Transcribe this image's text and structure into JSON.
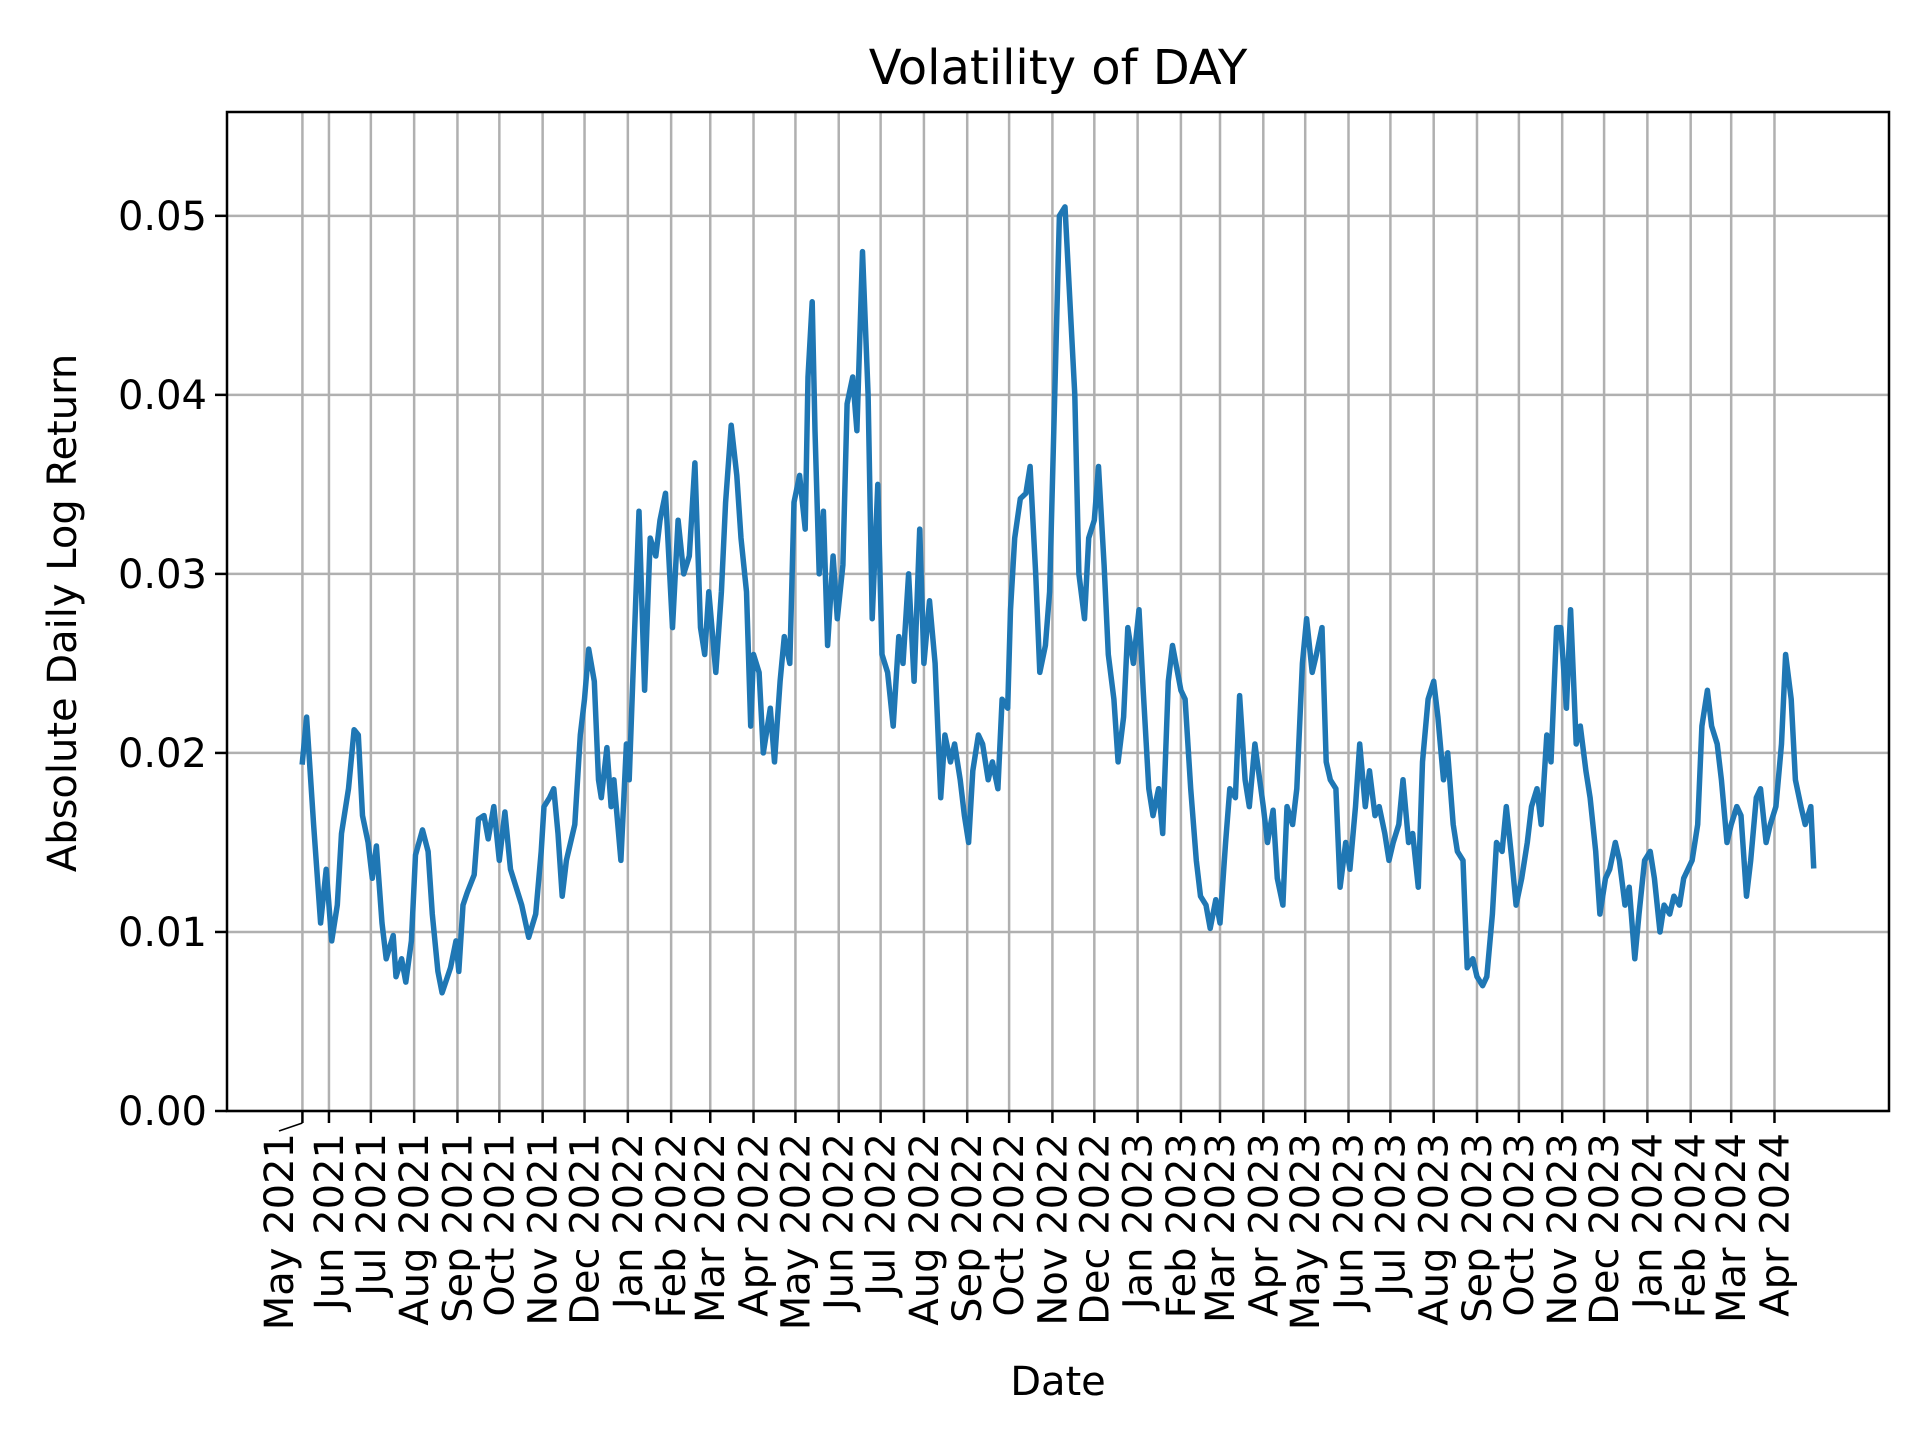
{
  "chart_data": {
    "type": "line",
    "title": "Volatility of DAY",
    "xlabel": "Date",
    "ylabel": "Absolute Daily Log Return",
    "xlim": [
      "2021-03-20",
      "2024-06-22"
    ],
    "ylim": [
      0,
      0.0558
    ],
    "grid": true,
    "line_color": "#1f77b4",
    "grid_color": "#b0b0b0",
    "yticks": [
      {
        "value": 0.0,
        "label": "0.00"
      },
      {
        "value": 0.01,
        "label": "0.01"
      },
      {
        "value": 0.02,
        "label": "0.02"
      },
      {
        "value": 0.03,
        "label": "0.03"
      },
      {
        "value": 0.04,
        "label": "0.04"
      },
      {
        "value": 0.05,
        "label": "0.05"
      }
    ],
    "xticks": [
      {
        "date": "2021-05-13",
        "label": "May 2021"
      },
      {
        "date": "2021-06-01",
        "label": "Jun 2021"
      },
      {
        "date": "2021-07-01",
        "label": "Jul 2021"
      },
      {
        "date": "2021-08-01",
        "label": "Aug 2021"
      },
      {
        "date": "2021-09-01",
        "label": "Sep 2021"
      },
      {
        "date": "2021-10-01",
        "label": "Oct 2021"
      },
      {
        "date": "2021-11-01",
        "label": "Nov 2021"
      },
      {
        "date": "2021-12-01",
        "label": "Dec 2021"
      },
      {
        "date": "2022-01-01",
        "label": "Jan 2022"
      },
      {
        "date": "2022-02-01",
        "label": "Feb 2022"
      },
      {
        "date": "2022-03-01",
        "label": "Mar 2022"
      },
      {
        "date": "2022-04-01",
        "label": "Apr 2022"
      },
      {
        "date": "2022-05-01",
        "label": "May 2022"
      },
      {
        "date": "2022-06-01",
        "label": "Jun 2022"
      },
      {
        "date": "2022-07-01",
        "label": "Jul 2022"
      },
      {
        "date": "2022-08-01",
        "label": "Aug 2022"
      },
      {
        "date": "2022-09-01",
        "label": "Sep 2022"
      },
      {
        "date": "2022-10-01",
        "label": "Oct 2022"
      },
      {
        "date": "2022-11-01",
        "label": "Nov 2022"
      },
      {
        "date": "2022-12-01",
        "label": "Dec 2022"
      },
      {
        "date": "2023-01-01",
        "label": "Jan 2023"
      },
      {
        "date": "2023-02-01",
        "label": "Feb 2023"
      },
      {
        "date": "2023-03-01",
        "label": "Mar 2023"
      },
      {
        "date": "2023-04-01",
        "label": "Apr 2023"
      },
      {
        "date": "2023-05-01",
        "label": "May 2023"
      },
      {
        "date": "2023-06-01",
        "label": "Jun 2023"
      },
      {
        "date": "2023-07-01",
        "label": "Jul 2023"
      },
      {
        "date": "2023-08-01",
        "label": "Aug 2023"
      },
      {
        "date": "2023-09-01",
        "label": "Sep 2023"
      },
      {
        "date": "2023-10-01",
        "label": "Oct 2023"
      },
      {
        "date": "2023-11-01",
        "label": "Nov 2023"
      },
      {
        "date": "2023-12-01",
        "label": "Dec 2023"
      },
      {
        "date": "2024-01-01",
        "label": "Jan 2024"
      },
      {
        "date": "2024-02-01",
        "label": "Feb 2024"
      },
      {
        "date": "2024-03-01",
        "label": "Mar 2024"
      },
      {
        "date": "2024-04-01",
        "label": "Apr 2024"
      }
    ],
    "points": [
      [
        "2021-05-13",
        0.0195
      ],
      [
        "2021-05-16",
        0.022
      ],
      [
        "2021-05-21",
        0.016
      ],
      [
        "2021-05-26",
        0.0105
      ],
      [
        "2021-05-30",
        0.0135
      ],
      [
        "2021-06-03",
        0.0095
      ],
      [
        "2021-06-07",
        0.0115
      ],
      [
        "2021-06-10",
        0.0155
      ],
      [
        "2021-06-15",
        0.018
      ],
      [
        "2021-06-19",
        0.0213
      ],
      [
        "2021-06-22",
        0.021
      ],
      [
        "2021-06-25",
        0.0165
      ],
      [
        "2021-06-29",
        0.015
      ],
      [
        "2021-07-02",
        0.013
      ],
      [
        "2021-07-05",
        0.0148
      ],
      [
        "2021-07-09",
        0.0105
      ],
      [
        "2021-07-12",
        0.0085
      ],
      [
        "2021-07-17",
        0.0098
      ],
      [
        "2021-07-19",
        0.0075
      ],
      [
        "2021-07-23",
        0.0085
      ],
      [
        "2021-07-26",
        0.0072
      ],
      [
        "2021-07-30",
        0.0095
      ],
      [
        "2021-08-02",
        0.0143
      ],
      [
        "2021-08-07",
        0.0157
      ],
      [
        "2021-08-11",
        0.0145
      ],
      [
        "2021-08-14",
        0.011
      ],
      [
        "2021-08-18",
        0.0078
      ],
      [
        "2021-08-21",
        0.0066
      ],
      [
        "2021-08-27",
        0.008
      ],
      [
        "2021-08-31",
        0.0095
      ],
      [
        "2021-09-02",
        0.0078
      ],
      [
        "2021-09-05",
        0.0115
      ],
      [
        "2021-09-08",
        0.0122
      ],
      [
        "2021-09-13",
        0.0132
      ],
      [
        "2021-09-16",
        0.0163
      ],
      [
        "2021-09-20",
        0.0165
      ],
      [
        "2021-09-23",
        0.0152
      ],
      [
        "2021-09-27",
        0.017
      ],
      [
        "2021-10-01",
        0.014
      ],
      [
        "2021-10-05",
        0.0167
      ],
      [
        "2021-10-09",
        0.0135
      ],
      [
        "2021-10-13",
        0.0125
      ],
      [
        "2021-10-17",
        0.0115
      ],
      [
        "2021-10-22",
        0.0097
      ],
      [
        "2021-10-27",
        0.011
      ],
      [
        "2021-10-31",
        0.0145
      ],
      [
        "2021-11-02",
        0.017
      ],
      [
        "2021-11-06",
        0.0175
      ],
      [
        "2021-11-09",
        0.018
      ],
      [
        "2021-11-12",
        0.0155
      ],
      [
        "2021-11-15",
        0.012
      ],
      [
        "2021-11-18",
        0.014
      ],
      [
        "2021-11-24",
        0.016
      ],
      [
        "2021-11-28",
        0.021
      ],
      [
        "2021-12-01",
        0.023
      ],
      [
        "2021-12-04",
        0.0258
      ],
      [
        "2021-12-08",
        0.024
      ],
      [
        "2021-12-11",
        0.0185
      ],
      [
        "2021-12-13",
        0.0175
      ],
      [
        "2021-12-17",
        0.0203
      ],
      [
        "2021-12-20",
        0.017
      ],
      [
        "2021-12-22",
        0.0185
      ],
      [
        "2021-12-27",
        0.014
      ],
      [
        "2021-12-31",
        0.0205
      ],
      [
        "2022-01-02",
        0.0185
      ],
      [
        "2022-01-05",
        0.025
      ],
      [
        "2022-01-09",
        0.0335
      ],
      [
        "2022-01-13",
        0.0235
      ],
      [
        "2022-01-17",
        0.032
      ],
      [
        "2022-01-21",
        0.031
      ],
      [
        "2022-01-24",
        0.033
      ],
      [
        "2022-01-28",
        0.0345
      ],
      [
        "2022-02-02",
        0.027
      ],
      [
        "2022-02-06",
        0.033
      ],
      [
        "2022-02-10",
        0.03
      ],
      [
        "2022-02-14",
        0.031
      ],
      [
        "2022-02-18",
        0.0362
      ],
      [
        "2022-02-22",
        0.027
      ],
      [
        "2022-02-25",
        0.0255
      ],
      [
        "2022-02-28",
        0.029
      ],
      [
        "2022-03-05",
        0.0245
      ],
      [
        "2022-03-09",
        0.029
      ],
      [
        "2022-03-12",
        0.034
      ],
      [
        "2022-03-16",
        0.0383
      ],
      [
        "2022-03-20",
        0.0355
      ],
      [
        "2022-03-23",
        0.032
      ],
      [
        "2022-03-27",
        0.029
      ],
      [
        "2022-03-30",
        0.0215
      ],
      [
        "2022-04-01",
        0.0255
      ],
      [
        "2022-04-05",
        0.0245
      ],
      [
        "2022-04-08",
        0.02
      ],
      [
        "2022-04-13",
        0.0225
      ],
      [
        "2022-04-16",
        0.0195
      ],
      [
        "2022-04-20",
        0.024
      ],
      [
        "2022-04-23",
        0.0265
      ],
      [
        "2022-04-27",
        0.025
      ],
      [
        "2022-04-30",
        0.034
      ],
      [
        "2022-05-04",
        0.0355
      ],
      [
        "2022-05-08",
        0.0325
      ],
      [
        "2022-05-10",
        0.041
      ],
      [
        "2022-05-13",
        0.0452
      ],
      [
        "2022-05-15",
        0.038
      ],
      [
        "2022-05-18",
        0.03
      ],
      [
        "2022-05-21",
        0.0335
      ],
      [
        "2022-05-24",
        0.026
      ],
      [
        "2022-05-28",
        0.031
      ],
      [
        "2022-05-31",
        0.0275
      ],
      [
        "2022-06-04",
        0.0305
      ],
      [
        "2022-06-07",
        0.0395
      ],
      [
        "2022-06-11",
        0.041
      ],
      [
        "2022-06-14",
        0.038
      ],
      [
        "2022-06-18",
        0.048
      ],
      [
        "2022-06-22",
        0.04
      ],
      [
        "2022-06-25",
        0.0275
      ],
      [
        "2022-06-29",
        0.035
      ],
      [
        "2022-07-02",
        0.0255
      ],
      [
        "2022-07-06",
        0.0245
      ],
      [
        "2022-07-10",
        0.0215
      ],
      [
        "2022-07-14",
        0.0265
      ],
      [
        "2022-07-17",
        0.025
      ],
      [
        "2022-07-21",
        0.03
      ],
      [
        "2022-07-25",
        0.024
      ],
      [
        "2022-07-29",
        0.0325
      ],
      [
        "2022-08-01",
        0.025
      ],
      [
        "2022-08-05",
        0.0285
      ],
      [
        "2022-08-09",
        0.025
      ],
      [
        "2022-08-13",
        0.0175
      ],
      [
        "2022-08-16",
        0.021
      ],
      [
        "2022-08-20",
        0.0195
      ],
      [
        "2022-08-23",
        0.0205
      ],
      [
        "2022-08-27",
        0.0185
      ],
      [
        "2022-08-30",
        0.0165
      ],
      [
        "2022-09-02",
        0.015
      ],
      [
        "2022-09-05",
        0.019
      ],
      [
        "2022-09-09",
        0.021
      ],
      [
        "2022-09-12",
        0.0205
      ],
      [
        "2022-09-16",
        0.0185
      ],
      [
        "2022-09-19",
        0.0195
      ],
      [
        "2022-09-23",
        0.018
      ],
      [
        "2022-09-26",
        0.023
      ],
      [
        "2022-09-30",
        0.0225
      ],
      [
        "2022-10-02",
        0.028
      ],
      [
        "2022-10-05",
        0.032
      ],
      [
        "2022-10-09",
        0.0342
      ],
      [
        "2022-10-13",
        0.0345
      ],
      [
        "2022-10-16",
        0.036
      ],
      [
        "2022-10-20",
        0.03
      ],
      [
        "2022-10-23",
        0.0245
      ],
      [
        "2022-10-27",
        0.026
      ],
      [
        "2022-10-30",
        0.029
      ],
      [
        "2022-11-03",
        0.041
      ],
      [
        "2022-11-06",
        0.05
      ],
      [
        "2022-11-10",
        0.0505
      ],
      [
        "2022-11-13",
        0.046
      ],
      [
        "2022-11-17",
        0.04
      ],
      [
        "2022-11-20",
        0.03
      ],
      [
        "2022-11-24",
        0.0275
      ],
      [
        "2022-11-27",
        0.032
      ],
      [
        "2022-12-01",
        0.033
      ],
      [
        "2022-12-04",
        0.036
      ],
      [
        "2022-12-08",
        0.0305
      ],
      [
        "2022-12-11",
        0.0255
      ],
      [
        "2022-12-15",
        0.023
      ],
      [
        "2022-12-18",
        0.0195
      ],
      [
        "2022-12-22",
        0.022
      ],
      [
        "2022-12-25",
        0.027
      ],
      [
        "2022-12-29",
        0.025
      ],
      [
        "2023-01-02",
        0.028
      ],
      [
        "2023-01-05",
        0.0235
      ],
      [
        "2023-01-09",
        0.018
      ],
      [
        "2023-01-12",
        0.0165
      ],
      [
        "2023-01-16",
        0.018
      ],
      [
        "2023-01-19",
        0.0155
      ],
      [
        "2023-01-23",
        0.024
      ],
      [
        "2023-01-26",
        0.026
      ],
      [
        "2023-02-01",
        0.0235
      ],
      [
        "2023-02-04",
        0.023
      ],
      [
        "2023-02-08",
        0.018
      ],
      [
        "2023-02-12",
        0.014
      ],
      [
        "2023-02-15",
        0.012
      ],
      [
        "2023-02-19",
        0.0115
      ],
      [
        "2023-02-22",
        0.0102
      ],
      [
        "2023-02-26",
        0.0118
      ],
      [
        "2023-03-01",
        0.0105
      ],
      [
        "2023-03-05",
        0.015
      ],
      [
        "2023-03-08",
        0.018
      ],
      [
        "2023-03-12",
        0.0175
      ],
      [
        "2023-03-15",
        0.0232
      ],
      [
        "2023-03-19",
        0.0185
      ],
      [
        "2023-03-22",
        0.017
      ],
      [
        "2023-03-26",
        0.0205
      ],
      [
        "2023-04-01",
        0.017
      ],
      [
        "2023-04-04",
        0.015
      ],
      [
        "2023-04-08",
        0.0168
      ],
      [
        "2023-04-11",
        0.013
      ],
      [
        "2023-04-15",
        0.0115
      ],
      [
        "2023-04-18",
        0.017
      ],
      [
        "2023-04-22",
        0.016
      ],
      [
        "2023-04-25",
        0.018
      ],
      [
        "2023-04-29",
        0.025
      ],
      [
        "2023-05-02",
        0.0275
      ],
      [
        "2023-05-06",
        0.0245
      ],
      [
        "2023-05-09",
        0.0255
      ],
      [
        "2023-05-13",
        0.027
      ],
      [
        "2023-05-16",
        0.0195
      ],
      [
        "2023-05-19",
        0.0185
      ],
      [
        "2023-05-23",
        0.018
      ],
      [
        "2023-05-26",
        0.0125
      ],
      [
        "2023-05-30",
        0.015
      ],
      [
        "2023-06-02",
        0.0135
      ],
      [
        "2023-06-06",
        0.017
      ],
      [
        "2023-06-09",
        0.0205
      ],
      [
        "2023-06-13",
        0.017
      ],
      [
        "2023-06-16",
        0.019
      ],
      [
        "2023-06-20",
        0.0165
      ],
      [
        "2023-06-23",
        0.017
      ],
      [
        "2023-06-27",
        0.0155
      ],
      [
        "2023-06-30",
        0.014
      ],
      [
        "2023-07-03",
        0.015
      ],
      [
        "2023-07-07",
        0.016
      ],
      [
        "2023-07-10",
        0.0185
      ],
      [
        "2023-07-14",
        0.015
      ],
      [
        "2023-07-17",
        0.0155
      ],
      [
        "2023-07-21",
        0.0125
      ],
      [
        "2023-07-24",
        0.0195
      ],
      [
        "2023-07-28",
        0.023
      ],
      [
        "2023-08-01",
        0.024
      ],
      [
        "2023-08-04",
        0.022
      ],
      [
        "2023-08-08",
        0.0185
      ],
      [
        "2023-08-11",
        0.02
      ],
      [
        "2023-08-15",
        0.016
      ],
      [
        "2023-08-18",
        0.0145
      ],
      [
        "2023-08-22",
        0.014
      ],
      [
        "2023-08-25",
        0.008
      ],
      [
        "2023-08-29",
        0.0085
      ],
      [
        "2023-09-01",
        0.0075
      ],
      [
        "2023-09-05",
        0.007
      ],
      [
        "2023-09-08",
        0.0075
      ],
      [
        "2023-09-12",
        0.011
      ],
      [
        "2023-09-15",
        0.015
      ],
      [
        "2023-09-19",
        0.0145
      ],
      [
        "2023-09-22",
        0.017
      ],
      [
        "2023-09-26",
        0.014
      ],
      [
        "2023-09-29",
        0.0115
      ],
      [
        "2023-10-03",
        0.013
      ],
      [
        "2023-10-07",
        0.015
      ],
      [
        "2023-10-10",
        0.017
      ],
      [
        "2023-10-14",
        0.018
      ],
      [
        "2023-10-17",
        0.016
      ],
      [
        "2023-10-21",
        0.021
      ],
      [
        "2023-10-24",
        0.0195
      ],
      [
        "2023-10-28",
        0.027
      ],
      [
        "2023-10-31",
        0.027
      ],
      [
        "2023-11-04",
        0.0225
      ],
      [
        "2023-11-07",
        0.028
      ],
      [
        "2023-11-11",
        0.0205
      ],
      [
        "2023-11-14",
        0.0215
      ],
      [
        "2023-11-18",
        0.019
      ],
      [
        "2023-11-21",
        0.0175
      ],
      [
        "2023-11-25",
        0.0145
      ],
      [
        "2023-11-28",
        0.011
      ],
      [
        "2023-12-02",
        0.013
      ],
      [
        "2023-12-05",
        0.0135
      ],
      [
        "2023-12-09",
        0.015
      ],
      [
        "2023-12-12",
        0.014
      ],
      [
        "2023-12-16",
        0.0115
      ],
      [
        "2023-12-19",
        0.0125
      ],
      [
        "2023-12-23",
        0.0085
      ],
      [
        "2023-12-26",
        0.011
      ],
      [
        "2023-12-30",
        0.014
      ],
      [
        "2024-01-03",
        0.0145
      ],
      [
        "2024-01-06",
        0.013
      ],
      [
        "2024-01-10",
        0.01
      ],
      [
        "2024-01-13",
        0.0115
      ],
      [
        "2024-01-17",
        0.011
      ],
      [
        "2024-01-20",
        0.012
      ],
      [
        "2024-01-24",
        0.0115
      ],
      [
        "2024-01-27",
        0.013
      ],
      [
        "2024-02-02",
        0.014
      ],
      [
        "2024-02-06",
        0.016
      ],
      [
        "2024-02-09",
        0.0215
      ],
      [
        "2024-02-13",
        0.0235
      ],
      [
        "2024-02-16",
        0.0215
      ],
      [
        "2024-02-20",
        0.0205
      ],
      [
        "2024-02-23",
        0.0185
      ],
      [
        "2024-02-27",
        0.015
      ],
      [
        "2024-03-01",
        0.016
      ],
      [
        "2024-03-05",
        0.017
      ],
      [
        "2024-03-08",
        0.0165
      ],
      [
        "2024-03-12",
        0.012
      ],
      [
        "2024-03-15",
        0.014
      ],
      [
        "2024-03-19",
        0.0175
      ],
      [
        "2024-03-22",
        0.018
      ],
      [
        "2024-03-26",
        0.015
      ],
      [
        "2024-03-29",
        0.016
      ],
      [
        "2024-04-02",
        0.017
      ],
      [
        "2024-04-06",
        0.0205
      ],
      [
        "2024-04-09",
        0.0255
      ],
      [
        "2024-04-13",
        0.023
      ],
      [
        "2024-04-16",
        0.0185
      ],
      [
        "2024-04-20",
        0.017
      ],
      [
        "2024-04-23",
        0.016
      ],
      [
        "2024-04-27",
        0.017
      ],
      [
        "2024-04-29",
        0.0137
      ]
    ]
  }
}
